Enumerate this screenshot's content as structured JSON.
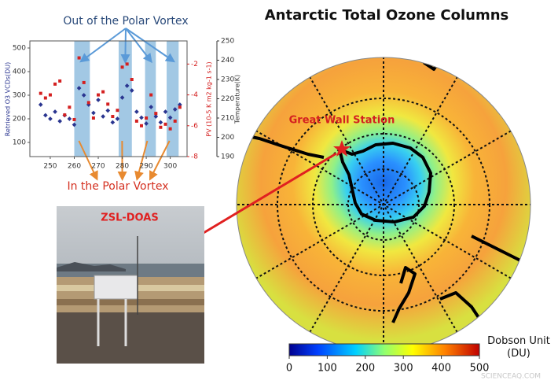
{
  "title": "Antarctic Total Ozone Columns",
  "station": "Great Wall Station",
  "instrument": "ZSL-DOAS",
  "colorbar": {
    "label": "Dobson Unit (DU)",
    "lim": [
      0,
      500
    ],
    "ticks": [
      0,
      100,
      200,
      300,
      400,
      500
    ]
  },
  "watermark": "SCIENCEAQ.COM",
  "inset_chart": {
    "annotation_top": "Out of the Polar Vortex",
    "annotation_bottom": "In the Polar Vortex",
    "y_label": "Retrieved O3 VCDs(DU)",
    "y2_label": "PV (10-5 K m2 kg-1 s-1)",
    "y3_label": "Temperature(K)",
    "xlim": [
      241.5,
      307
    ],
    "xticks": [
      250,
      260,
      270,
      280,
      290,
      300
    ],
    "ylim": [
      40,
      530
    ],
    "yticks": [
      100,
      200,
      300,
      400,
      500
    ],
    "y2lim": [
      -8,
      -0.5
    ],
    "y2ticks": [
      -8,
      -6,
      -4,
      -2
    ],
    "y3lim": [
      190,
      250
    ],
    "y3ticks": [
      190,
      200,
      210,
      220,
      230,
      240,
      250
    ],
    "vortex_out_periods": [
      [
        260,
        266.5
      ],
      [
        278.5,
        284
      ],
      [
        289.5,
        294
      ],
      [
        298.5,
        303.5
      ]
    ],
    "series": [
      {
        "name": "O3",
        "color": "#2a3590",
        "x": [
          246,
          248,
          250,
          252,
          254,
          256,
          258,
          260,
          262,
          264,
          266,
          268,
          270,
          272,
          274,
          276,
          278,
          280,
          282,
          284,
          286,
          288,
          290,
          292,
          294,
          296,
          298,
          300,
          302,
          304
        ],
        "values": [
          260,
          215,
          200,
          230,
          190,
          215,
          200,
          175,
          330,
          300,
          260,
          225,
          280,
          210,
          235,
          185,
          200,
          290,
          340,
          320,
          230,
          205,
          180,
          250,
          210,
          185,
          230,
          205,
          240,
          260
        ]
      },
      {
        "name": "PV",
        "color": "#d42020",
        "axis": "y2",
        "x": [
          246,
          248,
          250,
          252,
          254,
          256,
          258,
          260,
          262,
          264,
          266,
          268,
          270,
          272,
          274,
          276,
          278,
          280,
          282,
          284,
          286,
          288,
          290,
          292,
          294,
          296,
          298,
          300,
          302,
          304
        ],
        "values": [
          -3.9,
          -4.2,
          -4.0,
          -3.3,
          -3.1,
          -5.3,
          -4.8,
          -5.6,
          -1.6,
          -3.2,
          -4.5,
          -5.5,
          -4.0,
          -3.8,
          -4.6,
          -5.4,
          -5.0,
          -2.2,
          -2.0,
          -3.0,
          -5.7,
          -6.0,
          -5.5,
          -4.0,
          -5.2,
          -6.1,
          -5.9,
          -6.2,
          -5.7,
          -4.8
        ]
      }
    ]
  }
}
